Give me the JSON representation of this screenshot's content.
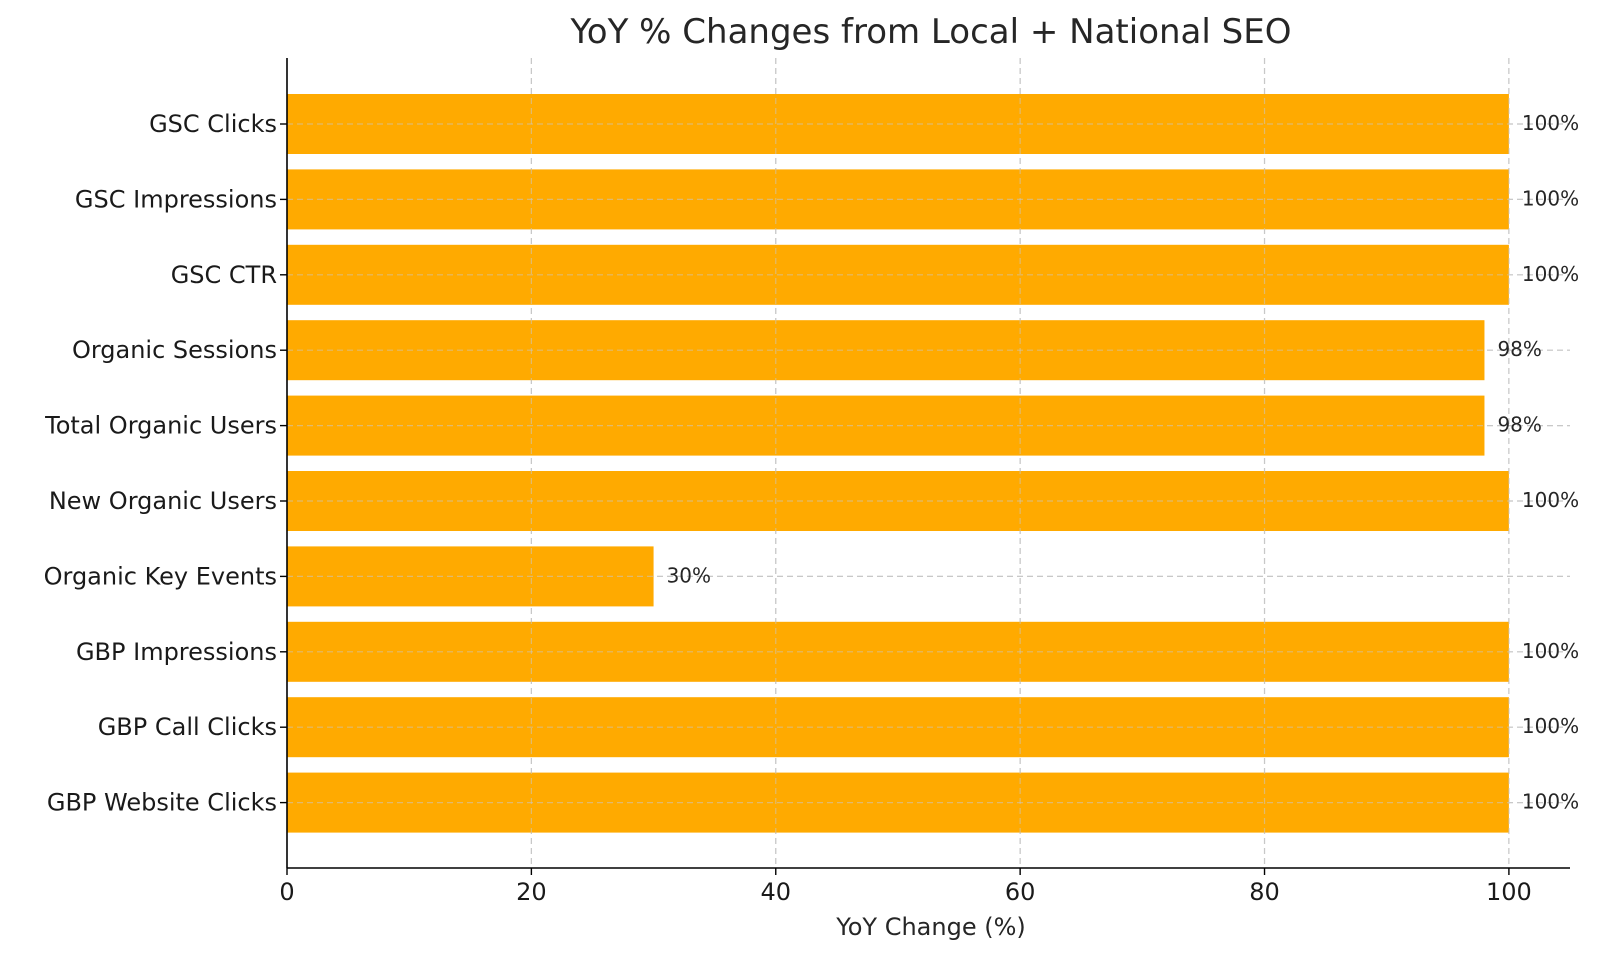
{
  "chart_data": {
    "type": "bar",
    "orientation": "horizontal",
    "title": "YoY % Changes from Local + National SEO",
    "xlabel": "YoY Change (%)",
    "ylabel": "",
    "xlim": [
      0,
      105
    ],
    "xticks": [
      0,
      20,
      40,
      60,
      80,
      100
    ],
    "grid": true,
    "bar_color": "#FFAA00",
    "categories": [
      "GSC Clicks",
      "GSC Impressions",
      "GSC CTR",
      "Organic Sessions",
      "Total Organic Users",
      "New Organic Users",
      "Organic Key Events",
      "GBP Impressions",
      "GBP Call Clicks",
      "GBP Website Clicks"
    ],
    "values": [
      100,
      100,
      100,
      98,
      98,
      100,
      30,
      100,
      100,
      100
    ],
    "data_labels": [
      "100%",
      "100%",
      "100%",
      "98%",
      "98%",
      "100%",
      "30%",
      "100%",
      "100%",
      "100%"
    ]
  }
}
